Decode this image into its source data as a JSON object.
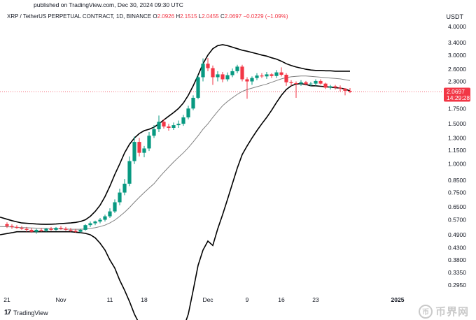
{
  "header": {
    "published": "published on TradingView.com, Dec 30, 2024 09:30 UTC",
    "symbol": "XRP / TetherUS PERPETUAL CONTRACT, 1D, BINANCE",
    "open_label": "O",
    "open": "2.0926",
    "high_label": "H",
    "high": "2.1515",
    "low_label": "L",
    "low": "2.0455",
    "close_label": "C",
    "close": "2.0697",
    "change": "−0.0229 (−1.09%)"
  },
  "currency": "USDT",
  "footer": {
    "brand": "TradingView",
    "brand_mark": "17"
  },
  "watermark": {
    "text": "币界网",
    "coin_glyph": "币"
  },
  "colors": {
    "up": "#089981",
    "down": "#f23645",
    "band": "#000000",
    "basis": "#808080"
  },
  "chart_data": {
    "type": "candlestick",
    "timeframe": "1D",
    "scale": "log",
    "y_ticks": [
      "4.0000",
      "3.4000",
      "3.0000",
      "2.6000",
      "2.3000",
      "1.7500",
      "1.5000",
      "1.3000",
      "1.1500",
      "1.0000",
      "0.8500",
      "0.7500",
      "0.6500",
      "0.5700",
      "0.4900",
      "0.4300",
      "0.3800",
      "0.3350",
      "0.2950"
    ],
    "x_labels": [
      {
        "label": "21",
        "index": 0
      },
      {
        "label": "Nov",
        "index": 11
      },
      {
        "label": "11",
        "index": 21
      },
      {
        "label": "18",
        "index": 28
      },
      {
        "label": "Dec",
        "index": 41
      },
      {
        "label": "9",
        "index": 49
      },
      {
        "label": "16",
        "index": 56
      },
      {
        "label": "23",
        "index": 63
      },
      {
        "label": "2025",
        "index": 71
      }
    ],
    "last_price": "2.0697",
    "countdown": "14:29:28",
    "candles": [
      {
        "o": 0.545,
        "h": 0.555,
        "l": 0.525,
        "c": 0.535
      },
      {
        "o": 0.535,
        "h": 0.545,
        "l": 0.52,
        "c": 0.53
      },
      {
        "o": 0.53,
        "h": 0.54,
        "l": 0.52,
        "c": 0.525
      },
      {
        "o": 0.525,
        "h": 0.535,
        "l": 0.515,
        "c": 0.52
      },
      {
        "o": 0.52,
        "h": 0.53,
        "l": 0.505,
        "c": 0.515
      },
      {
        "o": 0.515,
        "h": 0.525,
        "l": 0.5,
        "c": 0.505
      },
      {
        "o": 0.505,
        "h": 0.52,
        "l": 0.495,
        "c": 0.515
      },
      {
        "o": 0.515,
        "h": 0.525,
        "l": 0.505,
        "c": 0.51
      },
      {
        "o": 0.51,
        "h": 0.525,
        "l": 0.505,
        "c": 0.52
      },
      {
        "o": 0.52,
        "h": 0.53,
        "l": 0.51,
        "c": 0.515
      },
      {
        "o": 0.515,
        "h": 0.53,
        "l": 0.51,
        "c": 0.525
      },
      {
        "o": 0.525,
        "h": 0.535,
        "l": 0.515,
        "c": 0.52
      },
      {
        "o": 0.52,
        "h": 0.53,
        "l": 0.51,
        "c": 0.515
      },
      {
        "o": 0.515,
        "h": 0.525,
        "l": 0.505,
        "c": 0.51
      },
      {
        "o": 0.51,
        "h": 0.52,
        "l": 0.5,
        "c": 0.505
      },
      {
        "o": 0.505,
        "h": 0.52,
        "l": 0.5,
        "c": 0.515
      },
      {
        "o": 0.515,
        "h": 0.545,
        "l": 0.51,
        "c": 0.54
      },
      {
        "o": 0.54,
        "h": 0.56,
        "l": 0.53,
        "c": 0.55
      },
      {
        "o": 0.55,
        "h": 0.565,
        "l": 0.54,
        "c": 0.56
      },
      {
        "o": 0.56,
        "h": 0.58,
        "l": 0.55,
        "c": 0.57
      },
      {
        "o": 0.57,
        "h": 0.6,
        "l": 0.56,
        "c": 0.59
      },
      {
        "o": 0.59,
        "h": 0.64,
        "l": 0.58,
        "c": 0.62
      },
      {
        "o": 0.62,
        "h": 0.7,
        "l": 0.61,
        "c": 0.68
      },
      {
        "o": 0.68,
        "h": 0.78,
        "l": 0.66,
        "c": 0.75
      },
      {
        "o": 0.75,
        "h": 0.86,
        "l": 0.73,
        "c": 0.82
      },
      {
        "o": 0.82,
        "h": 1.08,
        "l": 0.8,
        "c": 1.03
      },
      {
        "o": 1.03,
        "h": 1.32,
        "l": 1.0,
        "c": 1.25
      },
      {
        "o": 1.25,
        "h": 1.3,
        "l": 1.08,
        "c": 1.12
      },
      {
        "o": 1.12,
        "h": 1.2,
        "l": 1.07,
        "c": 1.17
      },
      {
        "o": 1.17,
        "h": 1.38,
        "l": 1.14,
        "c": 1.33
      },
      {
        "o": 1.33,
        "h": 1.48,
        "l": 1.3,
        "c": 1.42
      },
      {
        "o": 1.42,
        "h": 1.63,
        "l": 1.38,
        "c": 1.53
      },
      {
        "o": 1.53,
        "h": 1.57,
        "l": 1.43,
        "c": 1.46
      },
      {
        "o": 1.46,
        "h": 1.5,
        "l": 1.4,
        "c": 1.44
      },
      {
        "o": 1.44,
        "h": 1.52,
        "l": 1.41,
        "c": 1.48
      },
      {
        "o": 1.48,
        "h": 1.55,
        "l": 1.44,
        "c": 1.5
      },
      {
        "o": 1.5,
        "h": 1.64,
        "l": 1.47,
        "c": 1.6
      },
      {
        "o": 1.6,
        "h": 1.8,
        "l": 1.57,
        "c": 1.75
      },
      {
        "o": 1.75,
        "h": 2.0,
        "l": 1.72,
        "c": 1.95
      },
      {
        "o": 1.95,
        "h": 2.45,
        "l": 1.92,
        "c": 2.4
      },
      {
        "o": 2.4,
        "h": 2.9,
        "l": 2.3,
        "c": 2.75
      },
      {
        "o": 2.75,
        "h": 2.91,
        "l": 2.55,
        "c": 2.63
      },
      {
        "o": 2.63,
        "h": 2.7,
        "l": 2.22,
        "c": 2.4
      },
      {
        "o": 2.4,
        "h": 2.55,
        "l": 2.3,
        "c": 2.47
      },
      {
        "o": 2.47,
        "h": 2.53,
        "l": 2.28,
        "c": 2.35
      },
      {
        "o": 2.35,
        "h": 2.52,
        "l": 2.3,
        "c": 2.45
      },
      {
        "o": 2.45,
        "h": 2.62,
        "l": 2.4,
        "c": 2.55
      },
      {
        "o": 2.55,
        "h": 2.72,
        "l": 2.5,
        "c": 2.67
      },
      {
        "o": 2.67,
        "h": 2.72,
        "l": 2.3,
        "c": 2.35
      },
      {
        "o": 2.35,
        "h": 2.4,
        "l": 1.93,
        "c": 2.3
      },
      {
        "o": 2.3,
        "h": 2.42,
        "l": 2.22,
        "c": 2.38
      },
      {
        "o": 2.38,
        "h": 2.5,
        "l": 2.33,
        "c": 2.44
      },
      {
        "o": 2.44,
        "h": 2.5,
        "l": 2.38,
        "c": 2.42
      },
      {
        "o": 2.42,
        "h": 2.53,
        "l": 2.36,
        "c": 2.47
      },
      {
        "o": 2.47,
        "h": 2.5,
        "l": 2.38,
        "c": 2.43
      },
      {
        "o": 2.43,
        "h": 2.58,
        "l": 2.38,
        "c": 2.52
      },
      {
        "o": 2.52,
        "h": 2.65,
        "l": 2.42,
        "c": 2.46
      },
      {
        "o": 2.46,
        "h": 2.5,
        "l": 2.2,
        "c": 2.28
      },
      {
        "o": 2.28,
        "h": 2.33,
        "l": 2.2,
        "c": 2.26
      },
      {
        "o": 2.26,
        "h": 2.3,
        "l": 1.95,
        "c": 2.25
      },
      {
        "o": 2.25,
        "h": 2.33,
        "l": 2.2,
        "c": 2.28
      },
      {
        "o": 2.28,
        "h": 2.31,
        "l": 2.21,
        "c": 2.24
      },
      {
        "o": 2.24,
        "h": 2.29,
        "l": 2.19,
        "c": 2.25
      },
      {
        "o": 2.25,
        "h": 2.35,
        "l": 2.2,
        "c": 2.31
      },
      {
        "o": 2.31,
        "h": 2.35,
        "l": 2.23,
        "c": 2.25
      },
      {
        "o": 2.25,
        "h": 2.27,
        "l": 2.13,
        "c": 2.16
      },
      {
        "o": 2.16,
        "h": 2.22,
        "l": 2.12,
        "c": 2.19
      },
      {
        "o": 2.19,
        "h": 2.22,
        "l": 2.12,
        "c": 2.16
      },
      {
        "o": 2.16,
        "h": 2.21,
        "l": 2.08,
        "c": 2.14
      },
      {
        "o": 2.14,
        "h": 2.15,
        "l": 2.0,
        "c": 2.0926
      },
      {
        "o": 2.0926,
        "h": 2.1515,
        "l": 2.0455,
        "c": 2.0697
      }
    ],
    "bollinger": {
      "upper": [
        0.585,
        0.565,
        0.558,
        0.552,
        0.55,
        0.548,
        0.546,
        0.545,
        0.544,
        0.545,
        0.546,
        0.548,
        0.55,
        0.552,
        0.555,
        0.56,
        0.57,
        0.59,
        0.62,
        0.66,
        0.72,
        0.8,
        0.9,
        1.0,
        1.12,
        1.22,
        1.3,
        1.36,
        1.4,
        1.42,
        1.45,
        1.5,
        1.56,
        1.62,
        1.68,
        1.75,
        1.85,
        2.0,
        2.2,
        2.45,
        2.75,
        3.0,
        3.2,
        3.3,
        3.33,
        3.3,
        3.25,
        3.2,
        3.15,
        3.12,
        3.08,
        3.04,
        3.0,
        2.97,
        2.92,
        2.88,
        2.82,
        2.75,
        2.7,
        2.66,
        2.63,
        2.6,
        2.58,
        2.57,
        2.57,
        2.56,
        2.56,
        2.55,
        2.55,
        2.55,
        2.55
      ],
      "basis": [
        0.532,
        0.53,
        0.528,
        0.527,
        0.526,
        0.525,
        0.524,
        0.523,
        0.522,
        0.521,
        0.52,
        0.52,
        0.519,
        0.518,
        0.518,
        0.518,
        0.519,
        0.522,
        0.526,
        0.532,
        0.54,
        0.552,
        0.568,
        0.59,
        0.615,
        0.645,
        0.68,
        0.715,
        0.75,
        0.785,
        0.82,
        0.87,
        0.92,
        0.97,
        1.02,
        1.07,
        1.12,
        1.18,
        1.25,
        1.33,
        1.42,
        1.5,
        1.6,
        1.7,
        1.8,
        1.88,
        1.95,
        2.02,
        2.08,
        2.12,
        2.15,
        2.18,
        2.21,
        2.24,
        2.28,
        2.32,
        2.36,
        2.39,
        2.41,
        2.42,
        2.43,
        2.43,
        2.42,
        2.41,
        2.4,
        2.39,
        2.38,
        2.37,
        2.36,
        2.34,
        2.32
      ],
      "lower": [
        0.49,
        0.5,
        0.505,
        0.505,
        0.505,
        0.505,
        0.505,
        0.505,
        0.505,
        0.505,
        0.505,
        0.505,
        0.505,
        0.505,
        0.503,
        0.5,
        0.497,
        0.49,
        0.475,
        0.45,
        0.42,
        0.38,
        0.35,
        0.31,
        0.28,
        0.25,
        0.22,
        0.2,
        0.18,
        0.17,
        0.16,
        0.155,
        0.15,
        0.15,
        0.16,
        0.17,
        0.19,
        0.22,
        0.28,
        0.36,
        0.42,
        0.46,
        0.44,
        0.52,
        0.6,
        0.7,
        0.82,
        0.96,
        1.1,
        1.2,
        1.3,
        1.4,
        1.5,
        1.6,
        1.72,
        1.86,
        2.0,
        2.12,
        2.2,
        2.24,
        2.25,
        2.23,
        2.2,
        2.2,
        2.19,
        2.18,
        2.17,
        2.16,
        2.15,
        2.13,
        2.09
      ]
    }
  }
}
